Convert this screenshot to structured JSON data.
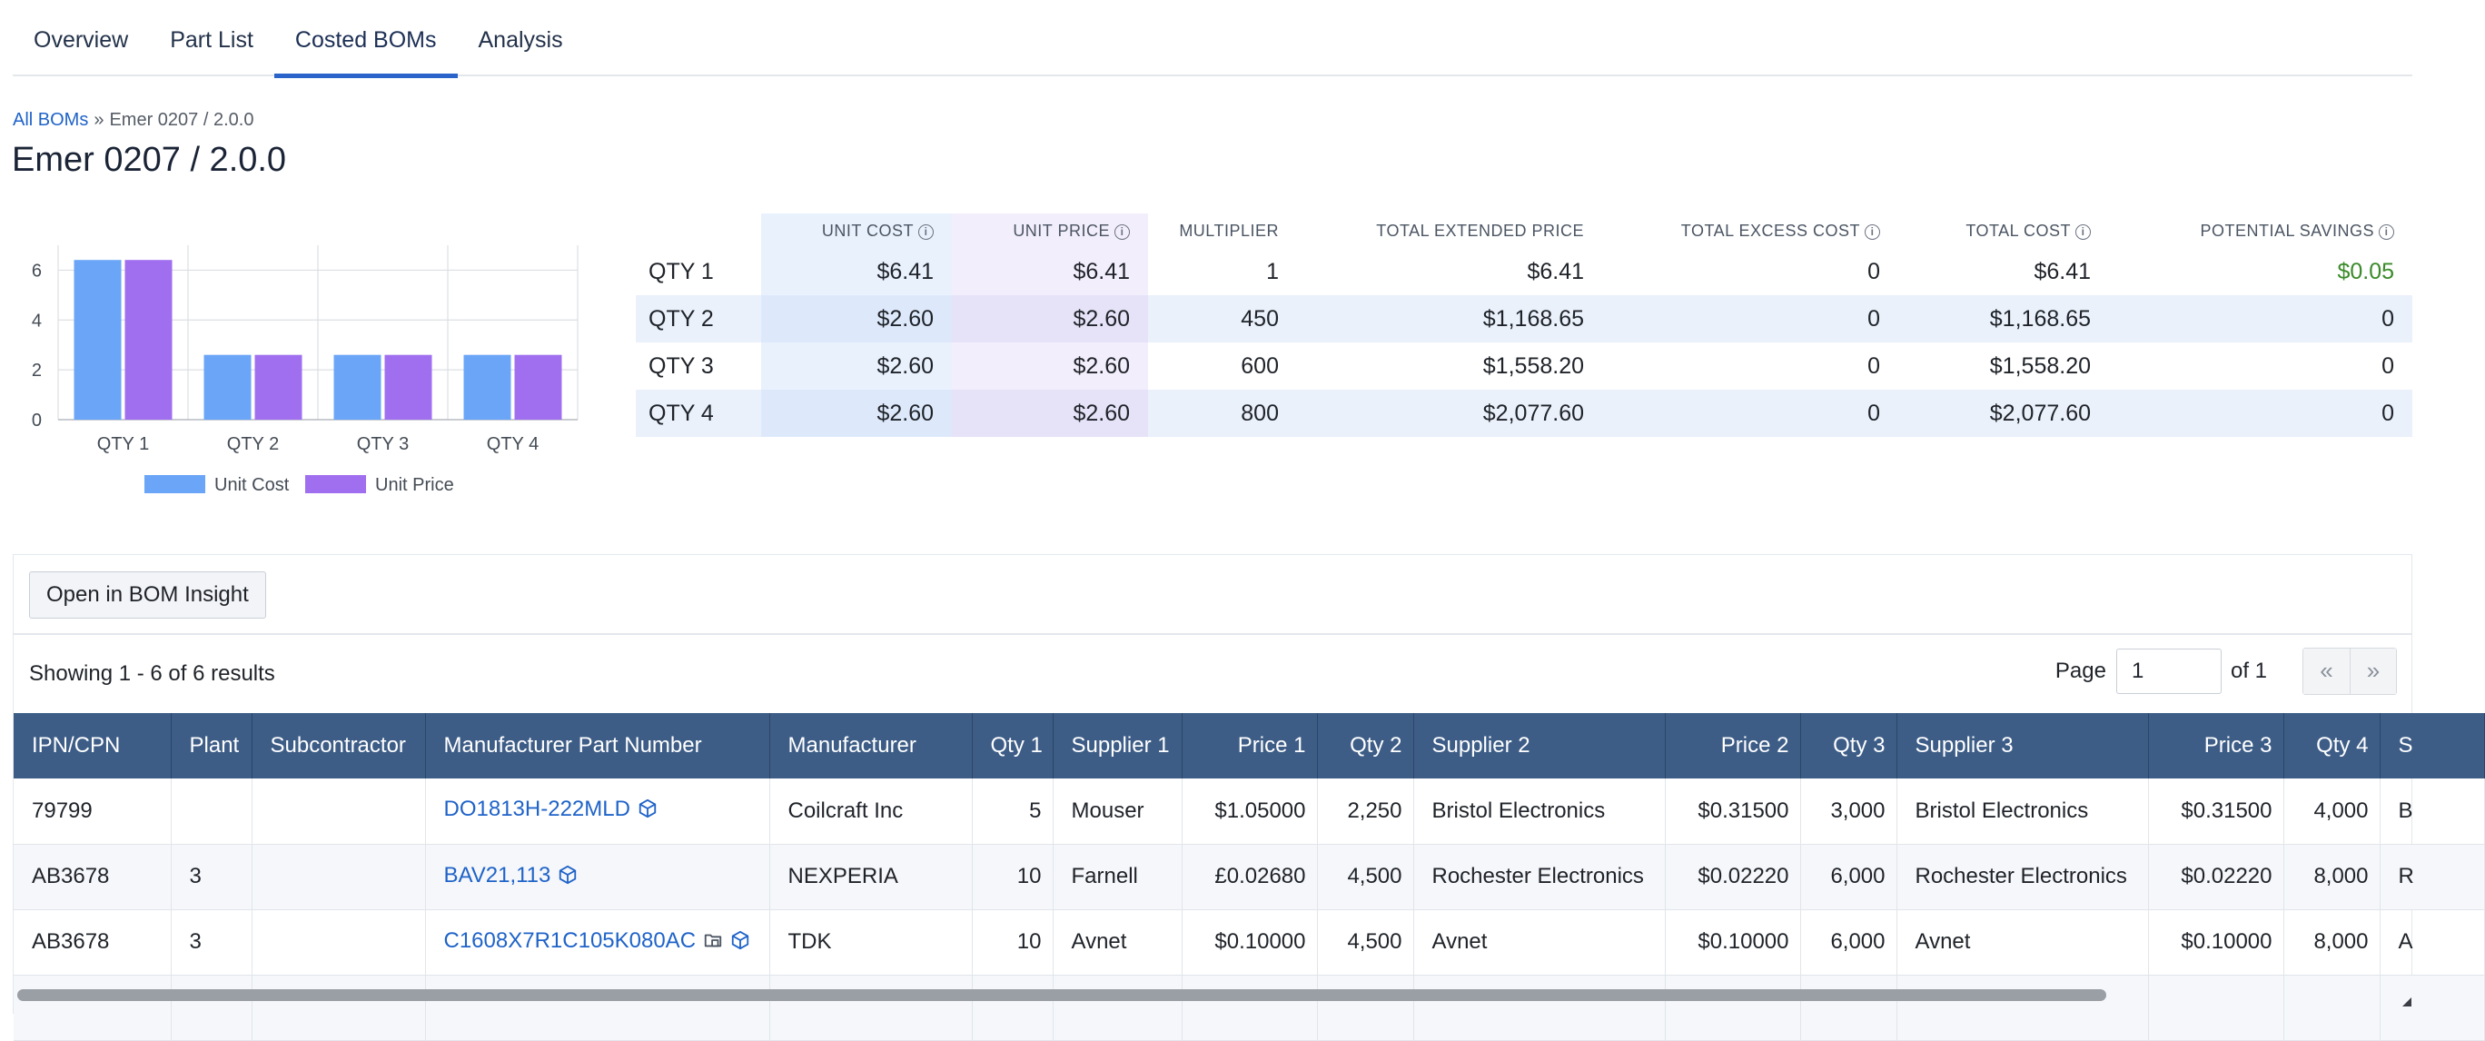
{
  "tabs": [
    {
      "label": "Overview",
      "active": false
    },
    {
      "label": "Part List",
      "active": false
    },
    {
      "label": "Costed BOMs",
      "active": true
    },
    {
      "label": "Analysis",
      "active": false
    }
  ],
  "breadcrumb": {
    "root": "All BOMs",
    "separator": "»",
    "current": "Emer 0207 / 2.0.0"
  },
  "page_title": "Emer 0207 / 2.0.0",
  "chart_data": {
    "type": "bar",
    "categories": [
      "QTY 1",
      "QTY 2",
      "QTY 3",
      "QTY 4"
    ],
    "series": [
      {
        "name": "Unit Cost",
        "values": [
          6.41,
          2.6,
          2.6,
          2.6
        ],
        "color": "#6aa5f7"
      },
      {
        "name": "Unit Price",
        "values": [
          6.41,
          2.6,
          2.6,
          2.6
        ],
        "color": "#a06ff0"
      }
    ],
    "yticks": [
      "0",
      "2",
      "4",
      "6"
    ],
    "ylim": [
      0,
      7
    ],
    "grid": true,
    "legend": "bottom"
  },
  "summary": {
    "headers": [
      "",
      "UNIT COST",
      "UNIT PRICE",
      "MULTIPLIER",
      "TOTAL EXTENDED PRICE",
      "TOTAL EXCESS COST",
      "TOTAL COST",
      "POTENTIAL SAVINGS"
    ],
    "info_columns": [
      1,
      2,
      5,
      6,
      7
    ],
    "rows": [
      [
        "QTY 1",
        "$6.41",
        "$6.41",
        "1",
        "$6.41",
        "0",
        "$6.41",
        "$0.05"
      ],
      [
        "QTY 2",
        "$2.60",
        "$2.60",
        "450",
        "$1,168.65",
        "0",
        "$1,168.65",
        "0"
      ],
      [
        "QTY 3",
        "$2.60",
        "$2.60",
        "600",
        "$1,558.20",
        "0",
        "$1,558.20",
        "0"
      ],
      [
        "QTY 4",
        "$2.60",
        "$2.60",
        "800",
        "$2,077.60",
        "0",
        "$2,077.60",
        "0"
      ]
    ]
  },
  "panel": {
    "open_button": "Open in BOM Insight",
    "showing": "Showing 1 - 6 of 6 results",
    "page_label": "Page",
    "page_value": "1",
    "page_of": "of 1",
    "prev": "«",
    "next": "»"
  },
  "grid": {
    "headers": [
      "IPN/CPN",
      "Plant",
      "Subcontractor",
      "Manufacturer Part Number",
      "Manufacturer",
      "Qty 1",
      "Supplier 1",
      "Price 1",
      "Qty 2",
      "Supplier 2",
      "Price 2",
      "Qty 3",
      "Supplier 3",
      "Price 3",
      "Qty 4",
      "S"
    ],
    "rows": [
      {
        "ipn": "79799",
        "plant": "",
        "sub": "",
        "mpn": "DO1813H-222MLD",
        "mpn_icons": [
          "package"
        ],
        "mfr": "Coilcraft Inc",
        "q1": "5",
        "s1": "Mouser",
        "p1": "$1.05000",
        "q2": "2,250",
        "s2": "Bristol Electronics",
        "p2": "$0.31500",
        "q3": "3,000",
        "s3": "Bristol Electronics",
        "p3": "$0.31500",
        "q4": "4,000",
        "s4": "B"
      },
      {
        "ipn": "AB3678",
        "plant": "3",
        "sub": "",
        "mpn": "BAV21,113",
        "mpn_icons": [
          "package"
        ],
        "mfr": "NEXPERIA",
        "q1": "10",
        "s1": "Farnell",
        "p1": "£0.02680",
        "q2": "4,500",
        "s2": "Rochester Electronics",
        "p2": "$0.02220",
        "q3": "6,000",
        "s3": "Rochester Electronics",
        "p3": "$0.02220",
        "q4": "8,000",
        "s4": "R"
      },
      {
        "ipn": "AB3678",
        "plant": "3",
        "sub": "",
        "mpn": "C1608X7R1C105K080AC",
        "mpn_icons": [
          "folder",
          "package"
        ],
        "mfr": "TDK",
        "q1": "10",
        "s1": "Avnet",
        "p1": "$0.10000",
        "q2": "4,500",
        "s2": "Avnet",
        "p2": "$0.10000",
        "q3": "6,000",
        "s3": "Avnet",
        "p3": "$0.10000",
        "q4": "8,000",
        "s4": "A"
      },
      {
        "ipn": "",
        "plant": "",
        "sub": "",
        "mpn": "",
        "mpn_icons": [],
        "mfr": "",
        "q1": "",
        "s1": "",
        "p1": "",
        "q2": "",
        "s2": "",
        "p2": "",
        "q3": "",
        "s3": "",
        "p3": "",
        "q4": "",
        "s4": ""
      }
    ]
  }
}
